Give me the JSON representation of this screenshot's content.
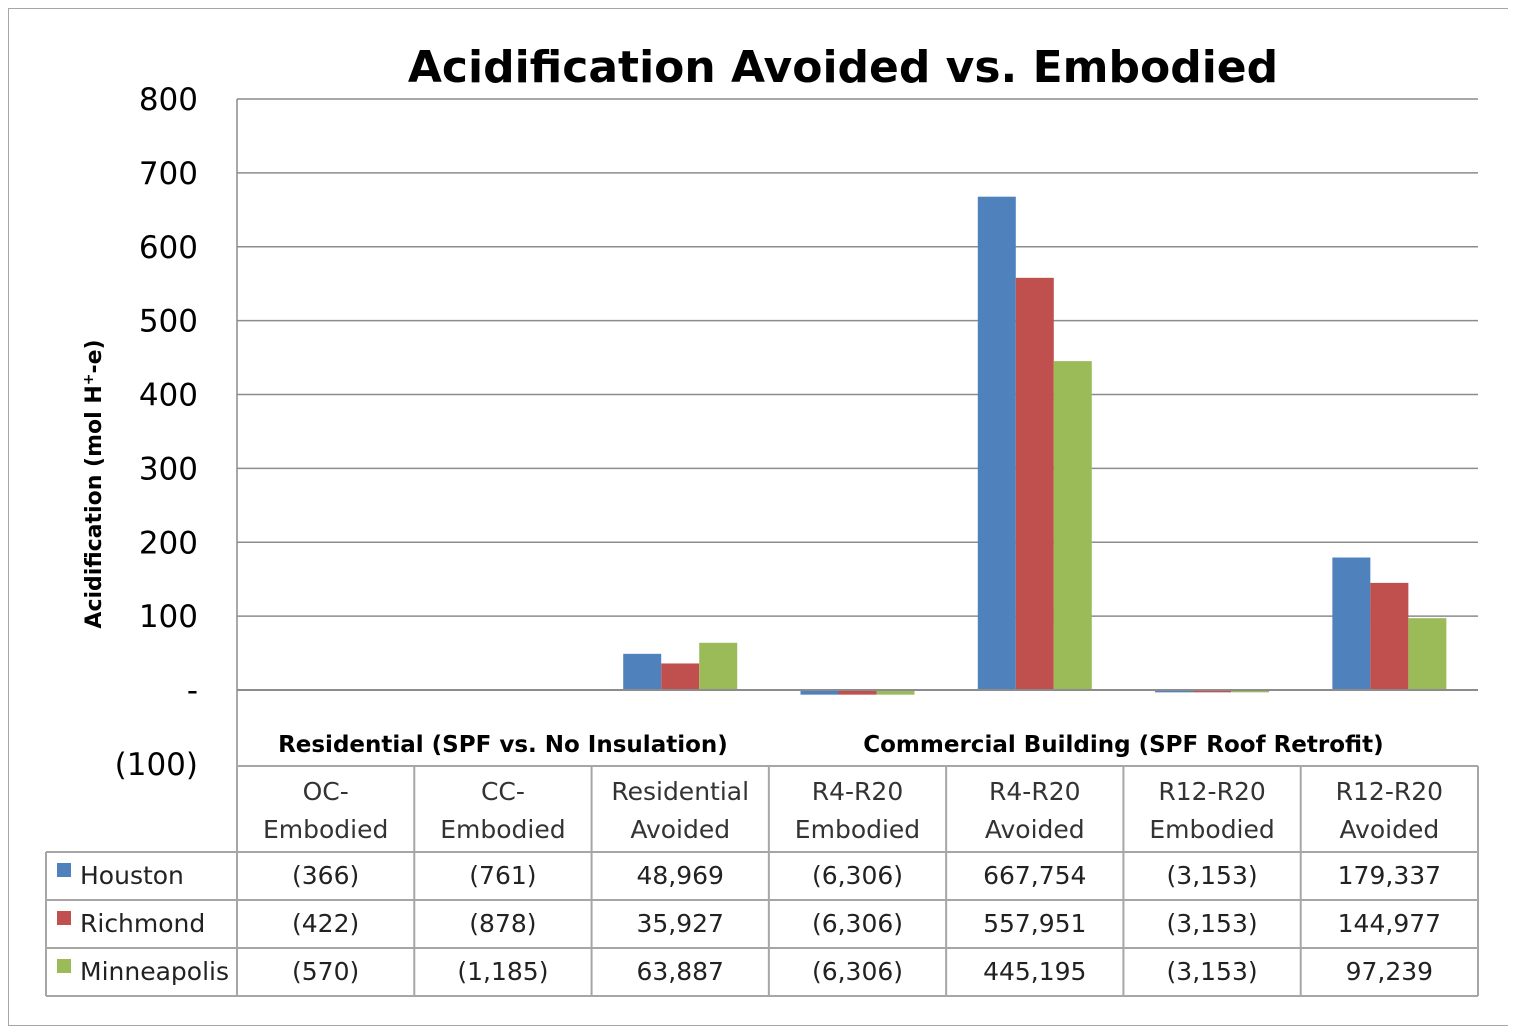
{
  "chart_data": {
    "type": "bar",
    "title": "Acidification Avoided vs. Embodied",
    "ylabel_main": "Acidification  (mol H",
    "ylabel_sup": "+",
    "ylabel_tail": "-e)",
    "ylim": [
      -100,
      800
    ],
    "yticks": [
      {
        "value": 800,
        "label": "800"
      },
      {
        "value": 700,
        "label": "700"
      },
      {
        "value": 600,
        "label": "600"
      },
      {
        "value": 500,
        "label": "500"
      },
      {
        "value": 400,
        "label": "400"
      },
      {
        "value": 300,
        "label": "300"
      },
      {
        "value": 200,
        "label": "200"
      },
      {
        "value": 100,
        "label": "100"
      },
      {
        "value": 0,
        "label": "-"
      },
      {
        "value": -100,
        "label": "(100)"
      }
    ],
    "grid": true,
    "legend_position": "data-table",
    "group_labels": [
      {
        "text": "Residential  (SPF vs. No Insulation)",
        "span": [
          0,
          2
        ]
      },
      {
        "text": "Commercial Building  (SPF Roof Retrofit)",
        "span": [
          3,
          6
        ]
      }
    ],
    "categories": [
      [
        "OC-",
        "Embodied"
      ],
      [
        "CC-",
        "Embodied"
      ],
      [
        "Residential",
        "Avoided"
      ],
      [
        "R4-R20",
        "Embodied"
      ],
      [
        "R4-R20",
        "Avoided"
      ],
      [
        "R12-R20",
        "Embodied"
      ],
      [
        "R12-R20",
        "Avoided"
      ]
    ],
    "series": [
      {
        "name": "Houston",
        "color": "#4f81bd",
        "values": [
          -0.366,
          -0.761,
          48.969,
          -6.306,
          667.754,
          -3.153,
          179.337
        ],
        "table": [
          "(366)",
          "(761)",
          "48,969",
          "(6,306)",
          "667,754",
          "(3,153)",
          "179,337"
        ]
      },
      {
        "name": "Richmond",
        "color": "#c0504d",
        "values": [
          -0.422,
          -0.878,
          35.927,
          -6.306,
          557.951,
          -3.153,
          144.977
        ],
        "table": [
          "(422)",
          "(878)",
          "35,927",
          "(6,306)",
          "557,951",
          "(3,153)",
          "144,977"
        ]
      },
      {
        "name": "Minneapolis",
        "color": "#9bbb59",
        "values": [
          -0.57,
          -1.185,
          63.887,
          -6.306,
          445.195,
          -3.153,
          97.239
        ],
        "table": [
          "(570)",
          "(1,185)",
          "63,887",
          "(6,306)",
          "445,195",
          "(3,153)",
          "97,239"
        ]
      }
    ]
  }
}
